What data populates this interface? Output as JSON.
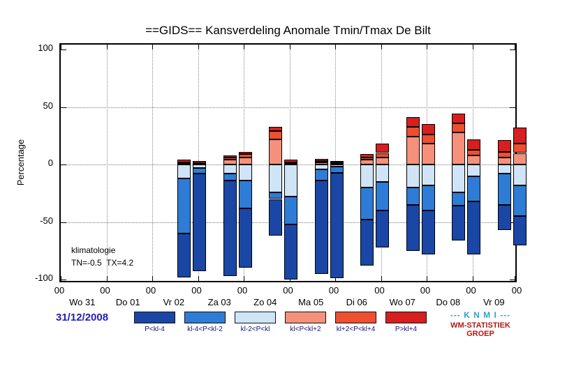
{
  "title": "==GIDS== Kansverdeling Anomale Tmin/Tmax De Bilt",
  "ylabel": "Percentage",
  "note_line1": "klimatologie",
  "note_line2": "TN=-0.5  TX=4.2",
  "date_label": "31/12/2008",
  "branding": {
    "knmi": "--- K N M I ---",
    "group_line1": "WM-STATISTIEK",
    "group_line2": "GROEP"
  },
  "chart_data": {
    "type": "bar",
    "stacked": true,
    "title": "==GIDS== Kansverdeling Anomale Tmin/Tmax De Bilt",
    "ylabel": "Percentage",
    "unit": "percent",
    "ylim": [
      -100,
      100
    ],
    "yticks": [
      100,
      50,
      0,
      -50,
      -100
    ],
    "grid": "dotted",
    "hour_tick_label": "00",
    "days": [
      "Wo 31",
      "Do 01",
      "Vr 02",
      "Za 03",
      "Zo 04",
      "Ma 05",
      "Di 06",
      "Wo 07",
      "Do 08",
      "Vr 09"
    ],
    "categories": [
      {
        "label": "P<kl-4",
        "color": "#1a47a5",
        "direction": "negative"
      },
      {
        "label": "kl-4<P<kl-2",
        "color": "#2e7cd6",
        "direction": "negative"
      },
      {
        "label": "kl-2<P<kl",
        "color": "#cfe5f7",
        "direction": "negative"
      },
      {
        "label": "kl<P<kl+2",
        "color": "#f5907b",
        "direction": "positive"
      },
      {
        "label": "kl+2<P<kl+4",
        "color": "#ee4f2e",
        "direction": "positive"
      },
      {
        "label": "P>kl+4",
        "color": "#d61f1f",
        "direction": "positive"
      }
    ],
    "values_align_with": "categories",
    "bars": [
      {
        "day": "Vr 02",
        "day_index": 2,
        "slot": 0,
        "values": [
          38,
          48,
          12,
          1,
          1,
          2
        ]
      },
      {
        "day": "Vr 02",
        "day_index": 2,
        "slot": 1,
        "values": [
          85,
          5,
          3,
          0,
          1,
          2
        ]
      },
      {
        "day": "Za 03",
        "day_index": 3,
        "slot": 0,
        "values": [
          83,
          6,
          8,
          4,
          2,
          2
        ]
      },
      {
        "day": "Za 03",
        "day_index": 3,
        "slot": 1,
        "values": [
          52,
          24,
          14,
          6,
          3,
          2
        ]
      },
      {
        "day": "Zo 04",
        "day_index": 4,
        "slot": 0,
        "values": [
          32,
          6,
          24,
          22,
          7,
          4
        ]
      },
      {
        "day": "Zo 04",
        "day_index": 4,
        "slot": 1,
        "values": [
          48,
          24,
          28,
          1,
          1,
          2
        ]
      },
      {
        "day": "Ma 05",
        "day_index": 5,
        "slot": 0,
        "values": [
          81,
          10,
          4,
          2,
          1,
          2
        ]
      },
      {
        "day": "Ma 05",
        "day_index": 5,
        "slot": 1,
        "values": [
          92,
          5,
          2,
          1,
          1,
          1
        ]
      },
      {
        "day": "Di 06",
        "day_index": 6,
        "slot": 0,
        "values": [
          40,
          28,
          20,
          4,
          2,
          3
        ]
      },
      {
        "day": "Di 06",
        "day_index": 6,
        "slot": 1,
        "values": [
          32,
          25,
          15,
          6,
          4,
          8
        ]
      },
      {
        "day": "Wo 07",
        "day_index": 7,
        "slot": 0,
        "values": [
          40,
          15,
          20,
          24,
          9,
          8
        ]
      },
      {
        "day": "Wo 07",
        "day_index": 7,
        "slot": 1,
        "values": [
          38,
          22,
          18,
          18,
          8,
          9
        ]
      },
      {
        "day": "Do 08",
        "day_index": 8,
        "slot": 0,
        "values": [
          30,
          12,
          24,
          28,
          8,
          8
        ]
      },
      {
        "day": "Do 08",
        "day_index": 8,
        "slot": 1,
        "values": [
          46,
          22,
          10,
          8,
          5,
          9
        ]
      },
      {
        "day": "Vr 09",
        "day_index": 9,
        "slot": 0,
        "values": [
          22,
          27,
          8,
          6,
          5,
          10
        ]
      },
      {
        "day": "Vr 09",
        "day_index": 9,
        "slot": 1,
        "values": [
          25,
          27,
          18,
          10,
          8,
          14
        ]
      }
    ]
  }
}
